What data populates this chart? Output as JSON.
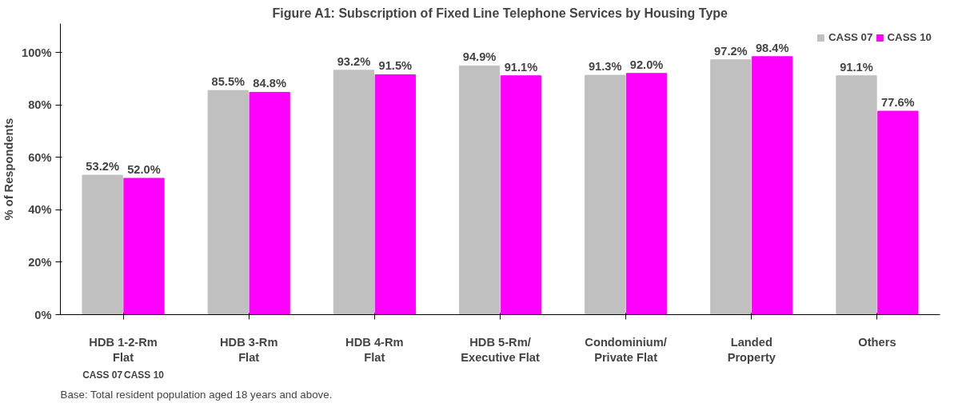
{
  "chart_data": {
    "type": "bar",
    "title": "Figure A1: Subscription of Fixed Line Telephone Services by Housing Type",
    "ylabel": "% of Respondents",
    "categories": [
      "HDB 1-2-Rm\nFlat",
      "HDB 3-Rm\nFlat",
      "HDB 4-Rm\nFlat",
      "HDB 5-Rm/\nExecutive Flat",
      "Condominium/\nPrivate Flat",
      "Landed\nProperty",
      "Others"
    ],
    "series": [
      {
        "name": "CASS 07",
        "color": "#c0c0c0",
        "values": [
          53.2,
          85.5,
          93.2,
          94.9,
          91.3,
          97.2,
          91.1
        ],
        "value_labels": [
          "53.2%",
          "85.5%",
          "93.2%",
          "94.9%",
          "91.3%",
          "97.2%",
          "91.1%"
        ]
      },
      {
        "name": "CASS 10",
        "color": "#ff00ff",
        "values": [
          52.0,
          84.8,
          91.5,
          91.1,
          92.0,
          98.4,
          77.6
        ],
        "value_labels": [
          "52.0%",
          "84.8%",
          "91.5%",
          "91.1%",
          "92.0%",
          "98.4%",
          "77.6%"
        ]
      }
    ],
    "ylim": [
      0,
      111
    ],
    "yticks": [
      {
        "value": 0,
        "label": "0%"
      },
      {
        "value": 20,
        "label": "20%"
      },
      {
        "value": 40,
        "label": "40%"
      },
      {
        "value": 60,
        "label": "60%"
      },
      {
        "value": 80,
        "label": "80%"
      },
      {
        "value": 100,
        "label": "100%"
      }
    ],
    "grid": false,
    "legend": "top right",
    "annotations": [
      "Base: Total resident population aged 18 years and above."
    ]
  }
}
